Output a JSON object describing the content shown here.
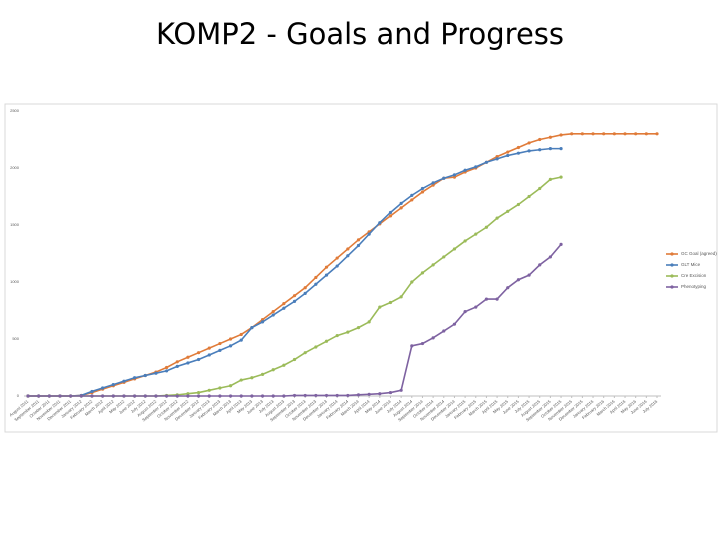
{
  "title": "KOMP2 - Goals and Progress",
  "chart_data": {
    "type": "line",
    "categories": [
      "August 2011",
      "September 2011",
      "October 2011",
      "November 2011",
      "December 2011",
      "January 2012",
      "February 2012",
      "March 2012",
      "April 2012",
      "May 2012",
      "June 2012",
      "July 2012",
      "August 2012",
      "September 2012",
      "October 2012",
      "November 2012",
      "December 2012",
      "January 2013",
      "February 2013",
      "March 2013",
      "April 2013",
      "May 2013",
      "June 2013",
      "July 2013",
      "August 2013",
      "September 2013",
      "October 2013",
      "November 2013",
      "December 2013",
      "January 2014",
      "February 2014",
      "March 2014",
      "April 2014",
      "May 2014",
      "June 2014",
      "July 2014",
      "August 2014",
      "September 2014",
      "October 2014",
      "November 2014",
      "December 2014",
      "January 2015",
      "February 2015",
      "March 2015",
      "April 2015",
      "May 2015",
      "June 2015",
      "July 2015",
      "August 2015",
      "September 2015",
      "October 2015",
      "November 2015",
      "December 2015",
      "January 2016",
      "February 2016",
      "March 2016",
      "April 2016",
      "May 2016",
      "June 2016",
      "July 2016"
    ],
    "series": [
      {
        "name": "GC Goal (agreed)",
        "color": "#e07b39",
        "values": [
          0,
          0,
          0,
          0,
          0,
          5,
          30,
          60,
          90,
          120,
          150,
          180,
          210,
          250,
          300,
          340,
          380,
          420,
          460,
          500,
          540,
          600,
          670,
          740,
          810,
          880,
          950,
          1040,
          1130,
          1210,
          1290,
          1370,
          1440,
          1510,
          1580,
          1650,
          1720,
          1790,
          1850,
          1910,
          1920,
          1965,
          2000,
          2050,
          2100,
          2140,
          2180,
          2220,
          2250,
          2270,
          2290,
          2300,
          2300,
          2300,
          2300,
          2300,
          2300,
          2300,
          2300,
          2300
        ]
      },
      {
        "name": "GLT Mice",
        "color": "#4a7ebb",
        "values": [
          0,
          0,
          0,
          0,
          0,
          5,
          40,
          70,
          100,
          130,
          160,
          180,
          200,
          220,
          260,
          290,
          320,
          360,
          400,
          440,
          490,
          600,
          650,
          710,
          770,
          830,
          900,
          980,
          1060,
          1140,
          1230,
          1320,
          1420,
          1520,
          1610,
          1690,
          1760,
          1820,
          1870,
          1910,
          1940,
          1980,
          2010,
          2050,
          2080,
          2110,
          2130,
          2150,
          2160,
          2170,
          2170,
          null,
          null,
          null,
          null,
          null,
          null,
          null,
          null,
          null
        ]
      },
      {
        "name": "Cre Excision",
        "color": "#9bbb59",
        "values": [
          0,
          0,
          0,
          0,
          0,
          0,
          0,
          0,
          0,
          0,
          0,
          0,
          0,
          5,
          10,
          20,
          30,
          50,
          70,
          90,
          140,
          160,
          190,
          230,
          270,
          320,
          380,
          430,
          480,
          530,
          560,
          600,
          650,
          780,
          820,
          870,
          1000,
          1080,
          1150,
          1220,
          1290,
          1360,
          1420,
          1480,
          1560,
          1620,
          1680,
          1750,
          1820,
          1900,
          1920,
          null,
          null,
          null,
          null,
          null,
          null,
          null,
          null,
          null
        ]
      },
      {
        "name": "Phenotyping",
        "color": "#7e62a1",
        "values": [
          0,
          0,
          0,
          0,
          0,
          0,
          0,
          0,
          0,
          0,
          0,
          0,
          0,
          0,
          0,
          0,
          0,
          0,
          0,
          0,
          0,
          0,
          0,
          0,
          0,
          5,
          5,
          5,
          5,
          5,
          5,
          10,
          15,
          20,
          30,
          50,
          440,
          460,
          510,
          570,
          630,
          740,
          780,
          850,
          850,
          950,
          1020,
          1060,
          1150,
          1220,
          1330,
          null,
          null,
          null,
          null,
          null,
          null,
          null,
          null,
          null
        ]
      }
    ],
    "ylim": [
      0,
      2500
    ],
    "yticks": [
      0,
      500,
      1000,
      1500,
      2000,
      2500
    ],
    "grid": false,
    "legend": "right"
  }
}
